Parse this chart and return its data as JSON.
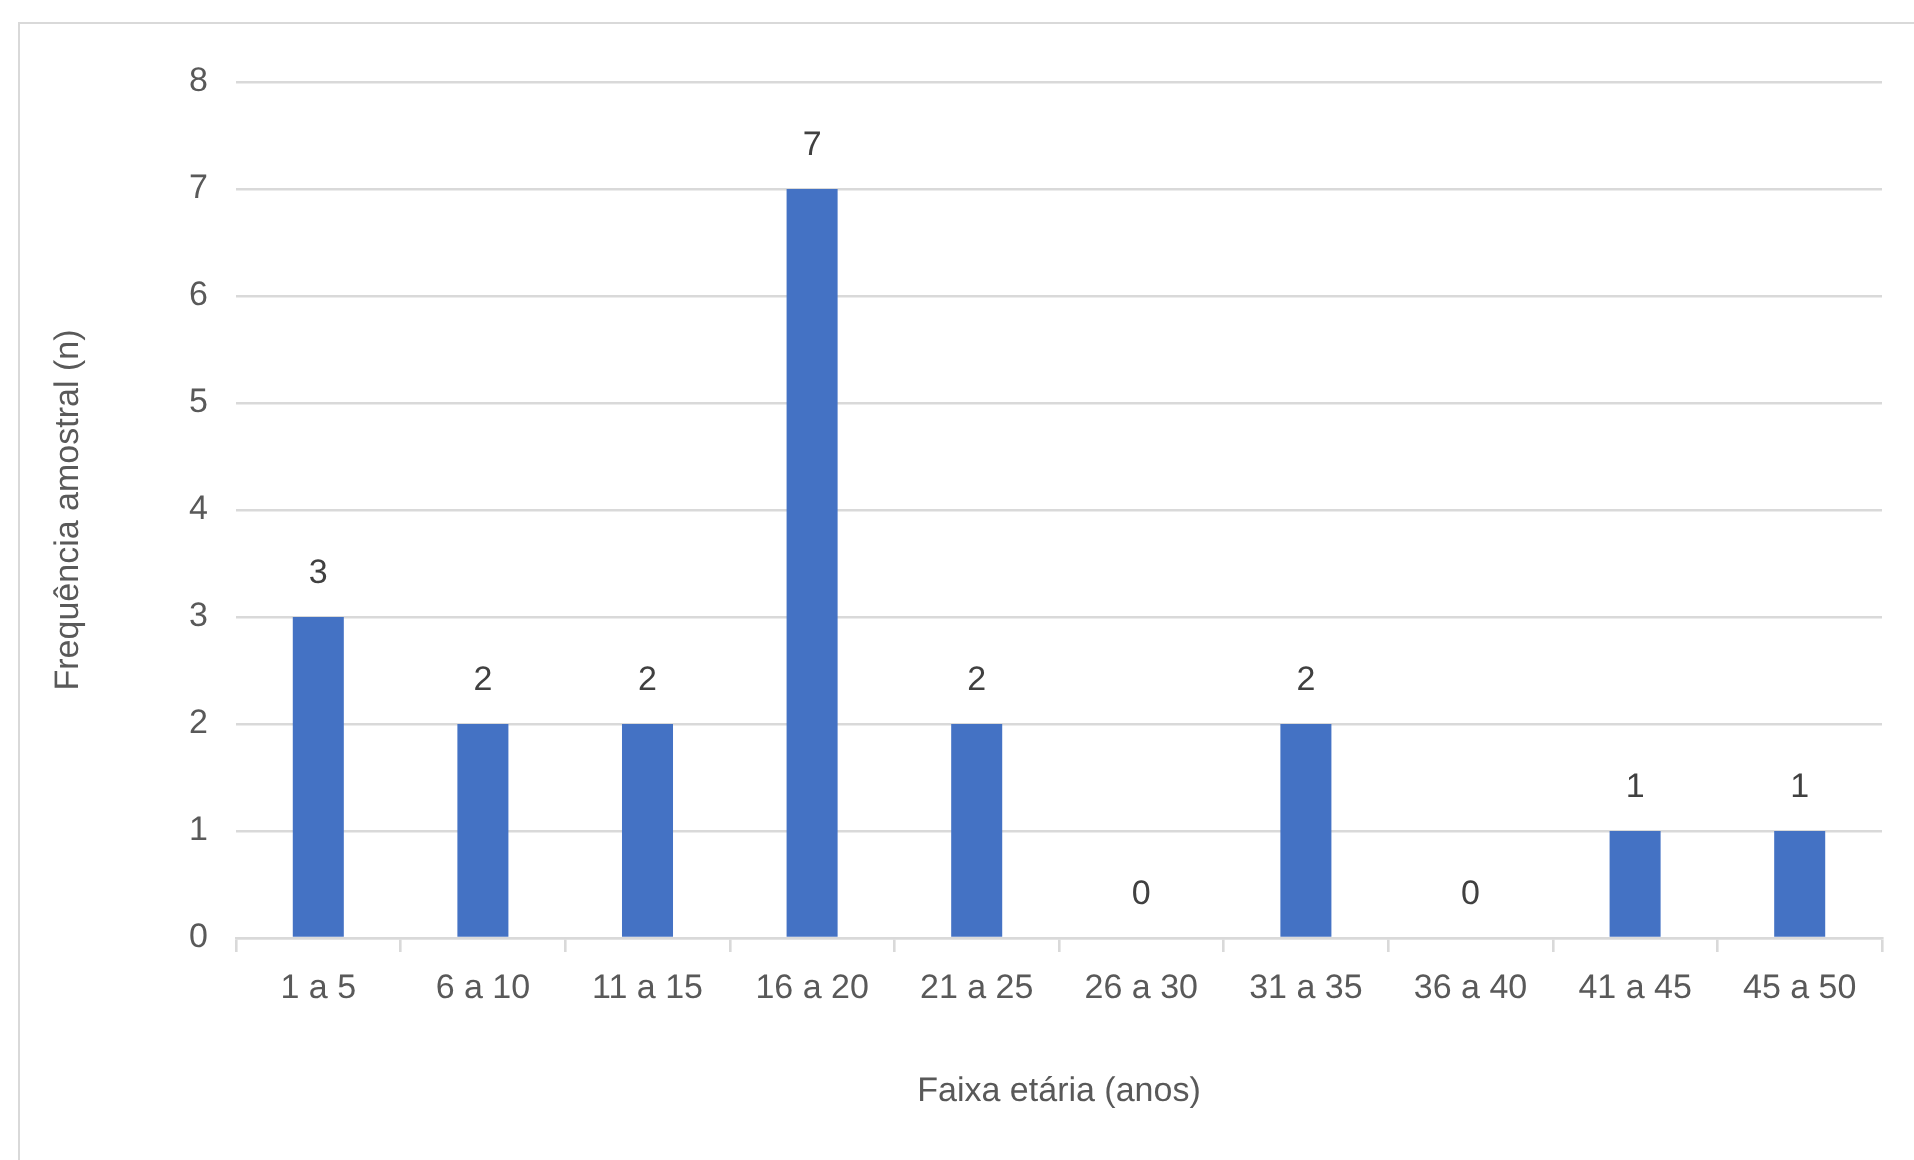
{
  "chart_data": {
    "type": "bar",
    "xlabel": "Faixa etária (anos)",
    "ylabel": "Frequência amostral (n)",
    "categories": [
      "1 a 5",
      "6 a 10",
      "11 a 15",
      "16 a 20",
      "21 a 25",
      "26 a 30",
      "31 a 35",
      "36 a 40",
      "41 a 45",
      "45 a 50"
    ],
    "values": [
      3,
      2,
      2,
      7,
      2,
      0,
      2,
      0,
      1,
      1
    ],
    "color": "#4472c4",
    "ylim": [
      0,
      8
    ],
    "yticks": [
      0,
      1,
      2,
      3,
      4,
      5,
      6,
      7,
      8
    ],
    "grid": "y",
    "data_labels": true,
    "legend": false
  }
}
